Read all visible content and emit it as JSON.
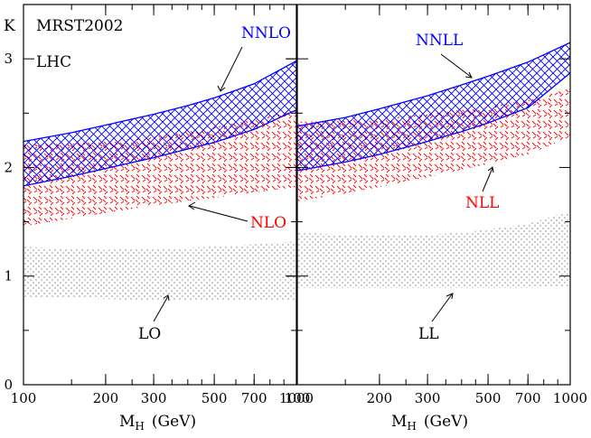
{
  "chart_data": [
    {
      "type": "area",
      "panel": "left",
      "title": "",
      "annotations": [
        "MRST2002",
        "LHC"
      ],
      "xlabel": "M_H (GeV)",
      "ylabel": "K",
      "x_scale": "log",
      "xlim": [
        100,
        1000
      ],
      "ylim": [
        0,
        3.5
      ],
      "x_ticks": [
        100,
        200,
        300,
        500,
        700,
        1000
      ],
      "y_ticks": [
        0,
        1,
        2,
        3
      ],
      "grid": false,
      "legend": "none",
      "series": [
        {
          "name": "NNLO",
          "color": "#0000ff",
          "pattern": "crosshatch",
          "x": [
            100,
            150,
            200,
            300,
            400,
            500,
            700,
            1000
          ],
          "upper": [
            2.24,
            2.32,
            2.39,
            2.49,
            2.57,
            2.64,
            2.77,
            2.98
          ],
          "lower": [
            1.83,
            1.92,
            1.99,
            2.09,
            2.17,
            2.23,
            2.35,
            2.53
          ]
        },
        {
          "name": "NLO",
          "color": "#ff0000",
          "pattern": "dashed-hatch",
          "x": [
            100,
            150,
            200,
            300,
            400,
            500,
            700,
            1000
          ],
          "upper": [
            2.21,
            2.22,
            2.24,
            2.28,
            2.33,
            2.37,
            2.44,
            2.53
          ],
          "lower": [
            1.46,
            1.53,
            1.58,
            1.65,
            1.69,
            1.72,
            1.77,
            1.82
          ]
        },
        {
          "name": "LO",
          "color": "#000000",
          "pattern": "dotted",
          "x": [
            100,
            150,
            200,
            300,
            400,
            500,
            700,
            1000
          ],
          "upper": [
            1.27,
            1.25,
            1.24,
            1.25,
            1.26,
            1.27,
            1.29,
            1.32
          ],
          "lower": [
            0.81,
            0.8,
            0.79,
            0.78,
            0.78,
            0.78,
            0.78,
            0.77
          ]
        }
      ]
    },
    {
      "type": "area",
      "panel": "right",
      "title": "",
      "xlabel": "M_H (GeV)",
      "ylabel": "",
      "x_scale": "log",
      "xlim": [
        100,
        1000
      ],
      "ylim": [
        0,
        3.5
      ],
      "x_ticks": [
        100,
        200,
        300,
        500,
        700,
        1000
      ],
      "y_ticks": [
        0,
        1,
        2,
        3
      ],
      "grid": false,
      "legend": "none",
      "series": [
        {
          "name": "NNLL",
          "color": "#0000ff",
          "pattern": "crosshatch",
          "x": [
            100,
            150,
            200,
            300,
            400,
            500,
            700,
            1000
          ],
          "upper": [
            2.38,
            2.46,
            2.54,
            2.66,
            2.76,
            2.84,
            2.97,
            3.15
          ],
          "lower": [
            1.97,
            2.05,
            2.12,
            2.24,
            2.33,
            2.41,
            2.55,
            2.87
          ]
        },
        {
          "name": "NLL",
          "color": "#ff0000",
          "pattern": "dashed-hatch",
          "x": [
            100,
            150,
            200,
            300,
            400,
            500,
            700,
            1000
          ],
          "upper": [
            2.42,
            2.43,
            2.45,
            2.49,
            2.53,
            2.56,
            2.62,
            2.73
          ],
          "lower": [
            1.69,
            1.76,
            1.82,
            1.91,
            1.98,
            2.03,
            2.12,
            2.28
          ]
        },
        {
          "name": "LL",
          "color": "#000000",
          "pattern": "dotted",
          "x": [
            100,
            150,
            200,
            300,
            400,
            500,
            700,
            1000
          ],
          "upper": [
            1.4,
            1.38,
            1.37,
            1.38,
            1.4,
            1.43,
            1.48,
            1.6
          ],
          "lower": [
            0.89,
            0.89,
            0.89,
            0.89,
            0.89,
            0.89,
            0.89,
            0.9
          ]
        }
      ]
    }
  ],
  "labels": {
    "mrst": "MRST2002",
    "lhc": "LHC",
    "k": "K",
    "xlabel_main": "M",
    "xlabel_sub": "H",
    "xlabel_unit": "(GeV)"
  }
}
